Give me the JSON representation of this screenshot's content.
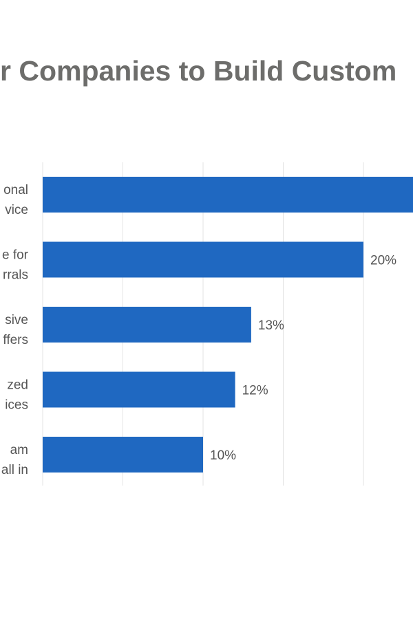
{
  "chart_data": {
    "type": "bar",
    "orientation": "horizontal",
    "title": "r Companies to Build Custom",
    "categories": [
      [
        "onal",
        "vice"
      ],
      [
        "e for",
        "rrals"
      ],
      [
        "sive",
        "ffers"
      ],
      [
        "zed",
        "ices"
      ],
      [
        "am",
        "all in"
      ]
    ],
    "values": [
      null,
      20,
      13,
      12,
      10
    ],
    "value_labels": [
      "",
      "20%",
      "13%",
      "12%",
      "10%"
    ],
    "xlim": [
      0,
      25
    ],
    "grid": true,
    "bar_color": "#1f68c1"
  }
}
